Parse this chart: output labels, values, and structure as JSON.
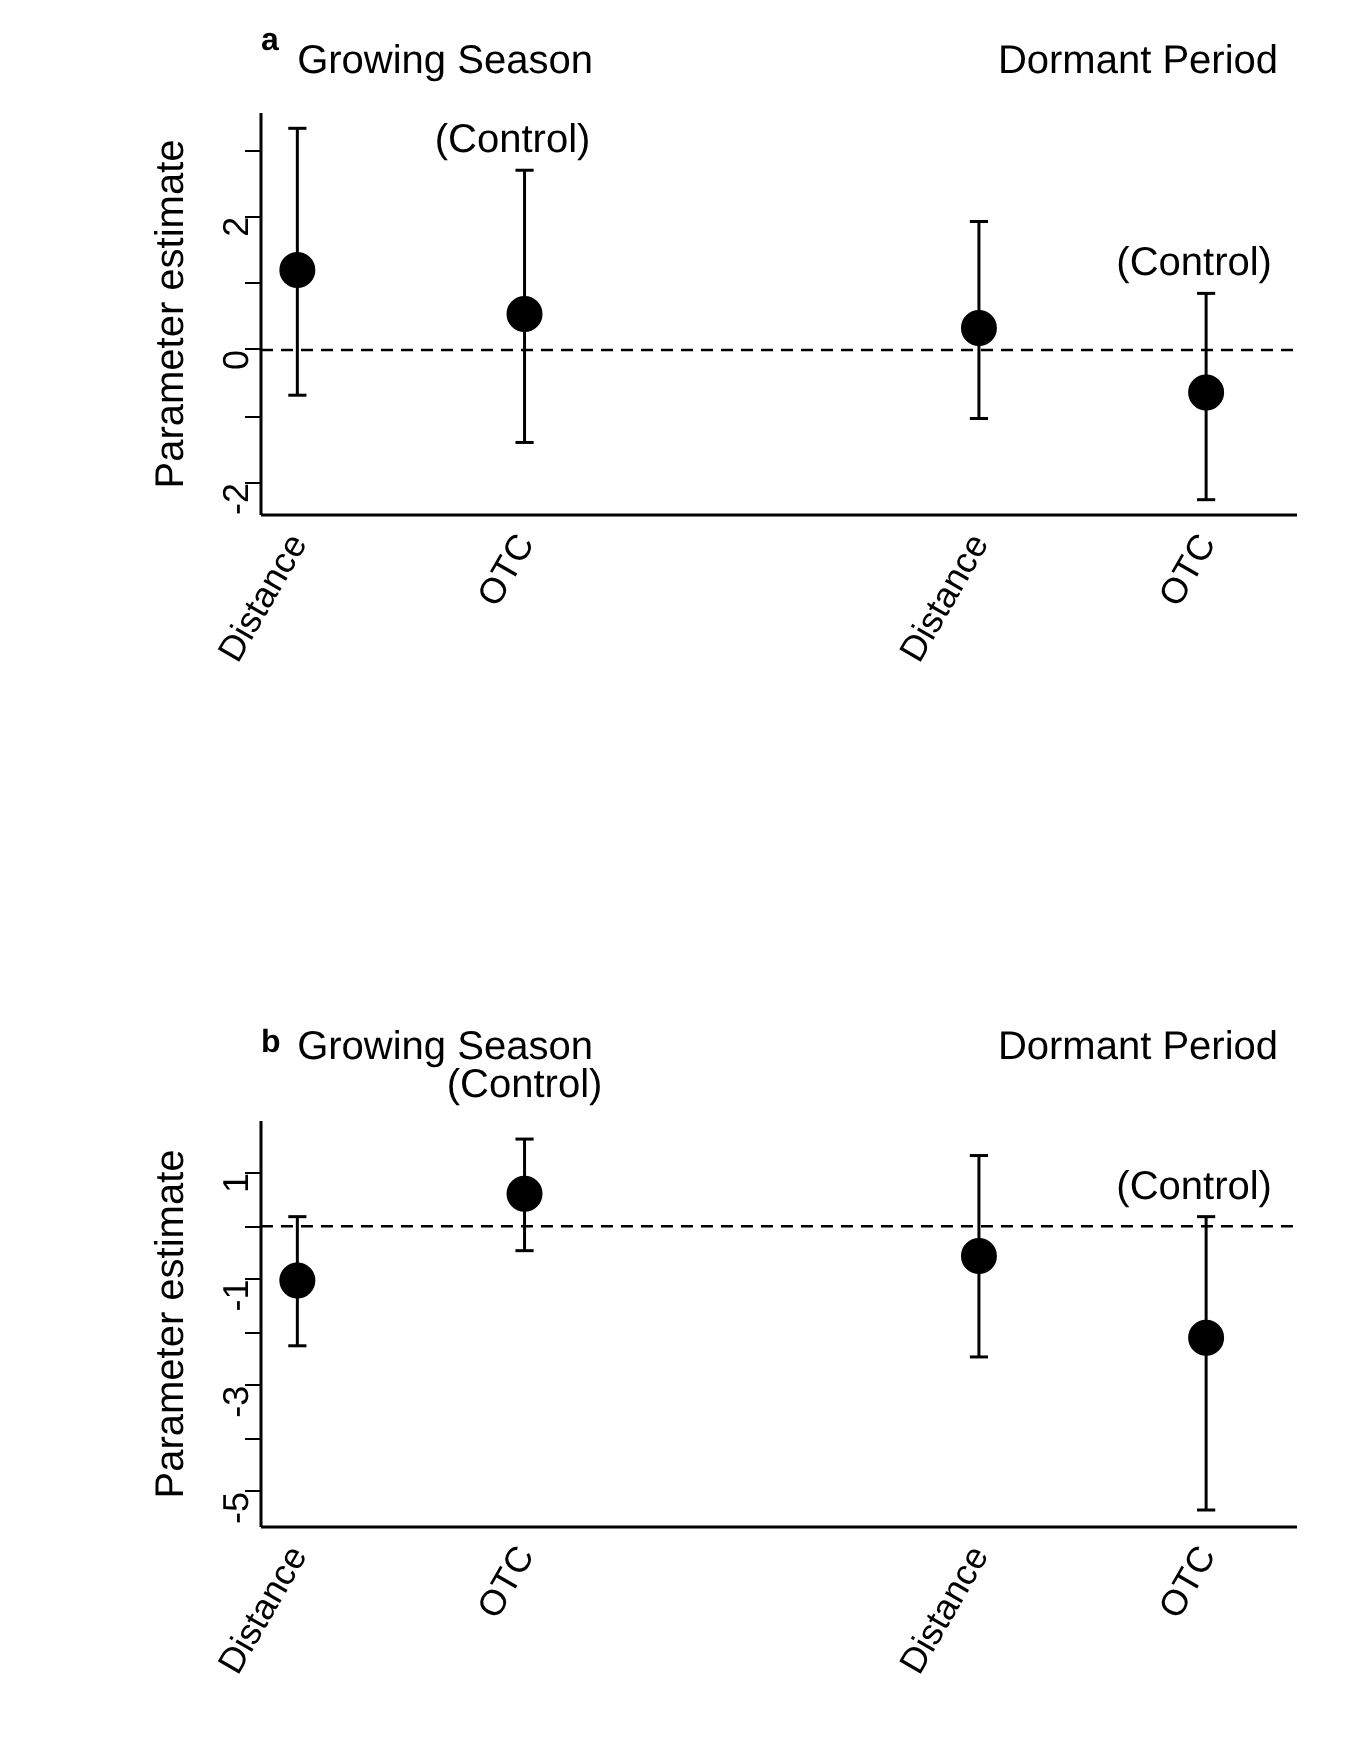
{
  "chart_data": [
    {
      "type": "scatter",
      "title": "a",
      "ylabel": "Parameter estimate",
      "categories": [
        "Distance",
        "OTC",
        null,
        "Distance",
        "OTC"
      ],
      "values": [
        1.2,
        0.54,
        null,
        0.33,
        -0.64
      ],
      "errors": [
        [
          -0.68,
          3.33
        ],
        [
          -1.39,
          2.7
        ],
        null,
        [
          -1.03,
          1.93
        ],
        [
          -2.25,
          0.85
        ]
      ],
      "color": "#000000",
      "marker": "circle",
      "grid": false,
      "legend": false,
      "ylim": [
        -2.48,
        3.56
      ],
      "yticks": [
        -2,
        {
          "value": -1,
          "label": null
        },
        0,
        {
          "value": 1,
          "label": null
        },
        2,
        {
          "value": 3,
          "label": null
        }
      ],
      "ref_lines": [
        {
          "axis": "y",
          "value": 0,
          "line_style": "dashed",
          "color": "#000000"
        }
      ],
      "annotations": [
        "Growing Season",
        "Dormant Period",
        "(Control)",
        "(Control)"
      ]
    },
    {
      "type": "scatter",
      "title": "b",
      "ylabel": "Parameter estimate",
      "categories": [
        "Distance",
        "OTC",
        null,
        "Distance",
        "OTC"
      ],
      "values": [
        -1.02,
        0.61,
        null,
        -0.56,
        -2.1
      ],
      "errors": [
        [
          -2.25,
          0.18
        ],
        [
          -0.46,
          1.64
        ],
        null,
        [
          -2.46,
          1.33
        ],
        [
          -5.34,
          0.18
        ]
      ],
      "color": "#000000",
      "marker": "circle",
      "grid": false,
      "legend": false,
      "ylim": [
        -5.66,
        1.98
      ],
      "yticks": [
        {
          "value": -5,
          "label": "-5"
        },
        {
          "value": -4,
          "label": null
        },
        -3,
        {
          "value": -2,
          "label": null
        },
        -1,
        {
          "value": 0,
          "label": null
        },
        1
      ],
      "ref_lines": [
        {
          "axis": "y",
          "value": 0,
          "line_style": "dashed",
          "color": "#000000"
        }
      ],
      "annotations": [
        "Growing Season",
        "Dormant Period",
        "(Control)",
        "(Control)"
      ]
    }
  ]
}
